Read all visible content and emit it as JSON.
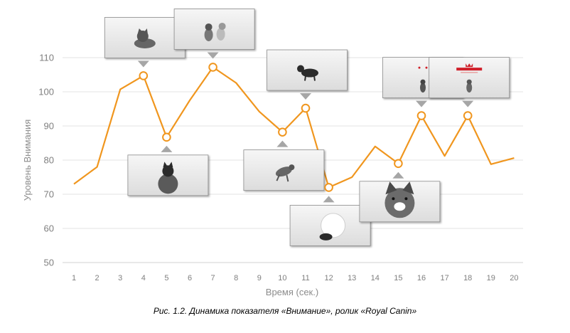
{
  "chart_data": {
    "type": "line",
    "x": [
      1,
      2,
      3,
      4,
      5,
      6,
      7,
      8,
      9,
      10,
      11,
      12,
      13,
      14,
      15,
      16,
      17,
      18,
      19,
      20
    ],
    "categories": [
      "1",
      "2",
      "3",
      "4",
      "5",
      "6",
      "7",
      "8",
      "9",
      "10",
      "11",
      "12",
      "13",
      "14",
      "15",
      "16",
      "17",
      "18",
      "19",
      "20"
    ],
    "series": [
      {
        "values": [
          73,
          78,
          100.7,
          104.7,
          86.7,
          97.5,
          107.2,
          102.6,
          94.2,
          88.2,
          95.2,
          72,
          75,
          84,
          79,
          93,
          81.2,
          93,
          78.8,
          80.6
        ],
        "color": "#F0961E",
        "marked_points": [
          4,
          5,
          7,
          10,
          11,
          12,
          15,
          16,
          18
        ]
      }
    ],
    "xlabel": "Время (сек.)",
    "ylabel": "Уровень Внимания",
    "ylim": [
      50,
      110
    ],
    "yticks": [
      50,
      60,
      70,
      80,
      90,
      100,
      110
    ],
    "grid": true,
    "legend": "none",
    "annotations": [
      {
        "x": 4,
        "side": "above",
        "image": "kitten-crouching-thumbnail"
      },
      {
        "x": 7,
        "side": "above",
        "image": "two-kittens-playing-thumbnail"
      },
      {
        "x": 11,
        "side": "above",
        "image": "kitten-walking-thumbnail"
      },
      {
        "x": 16,
        "side": "above",
        "image": "kitten-sitting-thumbnail"
      },
      {
        "x": 18,
        "side": "above",
        "image": "royal-canin-logo-kitten-thumbnail"
      },
      {
        "x": 5,
        "side": "below",
        "image": "kitten-back-view-thumbnail"
      },
      {
        "x": 10,
        "side": "below",
        "image": "kitten-jumping-thumbnail"
      },
      {
        "x": 12,
        "side": "below",
        "image": "fluffy-kitten-thumbnail"
      },
      {
        "x": 15,
        "side": "below",
        "image": "kitten-meowing-closeup-thumbnail"
      }
    ]
  },
  "caption": "Рис. 1.2. Динамика показателя «Внимание», ролик «Royal Canin»"
}
